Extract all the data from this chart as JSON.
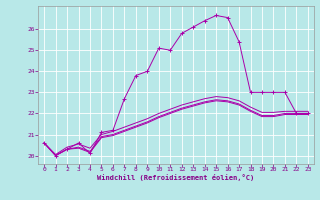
{
  "xlabel": "Windchill (Refroidissement éolien,°C)",
  "background_color": "#b8e8e8",
  "grid_color": "#ffffff",
  "line_color": "#aa00aa",
  "xlim": [
    -0.5,
    23.5
  ],
  "ylim": [
    19.6,
    27.1
  ],
  "yticks": [
    20,
    21,
    22,
    23,
    24,
    25,
    26
  ],
  "xticks": [
    0,
    1,
    2,
    3,
    4,
    5,
    6,
    7,
    8,
    9,
    10,
    11,
    12,
    13,
    14,
    15,
    16,
    17,
    18,
    19,
    20,
    21,
    22,
    23
  ],
  "line1_x": [
    0,
    1,
    2,
    3,
    4,
    5,
    6,
    7,
    8,
    9,
    10,
    11,
    12,
    13,
    14,
    15,
    16,
    17,
    18,
    19,
    20,
    21,
    22,
    23
  ],
  "line1_y": [
    20.6,
    20.0,
    20.3,
    20.6,
    20.1,
    21.1,
    21.2,
    22.7,
    23.8,
    24.0,
    25.1,
    25.0,
    25.8,
    26.1,
    26.4,
    26.65,
    26.55,
    25.4,
    23.0,
    23.0,
    23.0,
    23.0,
    22.0,
    22.0
  ],
  "line2_x": [
    0,
    1,
    2,
    3,
    4,
    5,
    6,
    7,
    8,
    9,
    10,
    11,
    12,
    13,
    14,
    15,
    16,
    17,
    18,
    19,
    20,
    21,
    22,
    23
  ],
  "line2_y": [
    20.6,
    20.0,
    20.3,
    20.4,
    20.2,
    20.9,
    21.0,
    21.2,
    21.4,
    21.6,
    21.85,
    22.05,
    22.25,
    22.4,
    22.55,
    22.65,
    22.6,
    22.45,
    22.15,
    21.9,
    21.9,
    22.0,
    22.0,
    22.0
  ],
  "line3_x": [
    0,
    1,
    2,
    3,
    4,
    5,
    6,
    7,
    8,
    9,
    10,
    11,
    12,
    13,
    14,
    15,
    16,
    17,
    18,
    19,
    20,
    21,
    22,
    23
  ],
  "line3_y": [
    20.6,
    20.0,
    20.3,
    20.35,
    20.15,
    20.85,
    20.95,
    21.15,
    21.35,
    21.55,
    21.8,
    22.0,
    22.2,
    22.35,
    22.5,
    22.6,
    22.55,
    22.4,
    22.1,
    21.85,
    21.85,
    21.95,
    21.95,
    21.95
  ],
  "line4_x": [
    0,
    1,
    2,
    3,
    4,
    5,
    6,
    7,
    8,
    9,
    10,
    11,
    12,
    13,
    14,
    15,
    16,
    17,
    18,
    19,
    20,
    21,
    22,
    23
  ],
  "line4_y": [
    20.6,
    20.05,
    20.4,
    20.55,
    20.35,
    21.0,
    21.15,
    21.35,
    21.55,
    21.75,
    22.0,
    22.2,
    22.4,
    22.55,
    22.7,
    22.8,
    22.75,
    22.6,
    22.3,
    22.05,
    22.05,
    22.1,
    22.1,
    22.1
  ]
}
